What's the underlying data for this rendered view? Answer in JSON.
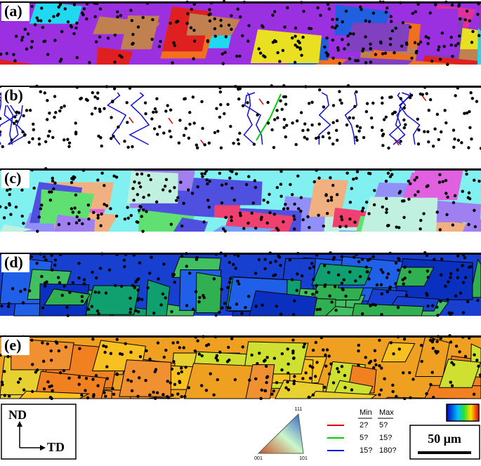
{
  "panels": [
    {
      "label": "(a)"
    },
    {
      "label": "(b)"
    },
    {
      "label": "(c)"
    },
    {
      "label": "(d)"
    },
    {
      "label": "(e)"
    }
  ],
  "axes": {
    "nd": "ND",
    "td": "TD"
  },
  "ipf": {
    "top": "111",
    "left": "001",
    "right": "101"
  },
  "boundaries": {
    "min_header": "Min",
    "max_header": "Max",
    "rows": [
      {
        "min": "2?",
        "max": "5?",
        "color": "#e00000"
      },
      {
        "min": "5?",
        "max": "15?",
        "color": "#00d000"
      },
      {
        "min": "15?",
        "max": "180?",
        "color": "#1010d0"
      }
    ]
  },
  "scale_bar": "50 µm"
}
